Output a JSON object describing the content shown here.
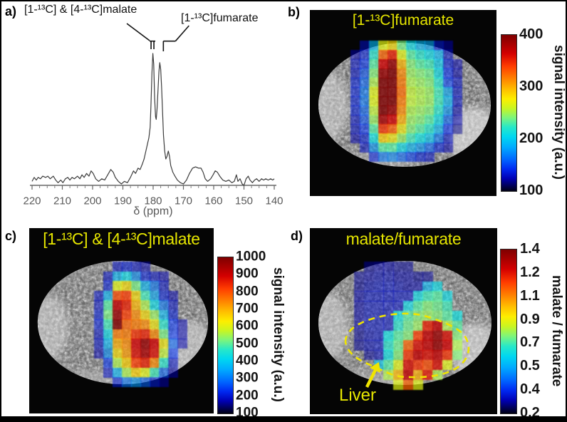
{
  "figure": {
    "background": "#ffffff",
    "border_color": "#000000",
    "accent_yellow": "#e6e600",
    "panels": {
      "a": {
        "label": "a)"
      },
      "b": {
        "label": "b)"
      },
      "c": {
        "label": "c)"
      },
      "d": {
        "label": "d)"
      }
    }
  },
  "chart_data": [
    {
      "id": "a",
      "type": "line",
      "xlabel": "δ (ppm)",
      "x_range": [
        220,
        140
      ],
      "x_ticks": [
        220,
        210,
        200,
        190,
        180,
        170,
        160,
        150,
        140
      ],
      "minor_tick_step": 2.5,
      "line_color": "#3c3c3c",
      "axis_text_color": "#595959",
      "peaks": [
        {
          "label": "[1-¹³C] & [4-¹³C]malate",
          "ppm": 180.1,
          "rel_intensity": 1.0
        },
        {
          "label": "[1-¹³C]fumarate",
          "ppm": 177.8,
          "rel_intensity": 0.93
        }
      ],
      "points": [
        [
          220,
          0.03
        ],
        [
          219.3,
          0.06
        ],
        [
          218.6,
          0.04
        ],
        [
          218,
          0.06
        ],
        [
          217.2,
          0.05
        ],
        [
          216.5,
          0.07
        ],
        [
          215.5,
          0.06
        ],
        [
          214.8,
          0.07
        ],
        [
          214,
          0.05
        ],
        [
          213,
          0.07
        ],
        [
          212.2,
          0.04
        ],
        [
          211.4,
          0.02
        ],
        [
          210.5,
          0.04
        ],
        [
          209.8,
          0.02
        ],
        [
          209,
          0.05
        ],
        [
          208.2,
          0.06
        ],
        [
          207.5,
          0.04
        ],
        [
          206.8,
          0.06
        ],
        [
          206,
          0.05
        ],
        [
          205,
          0.07
        ],
        [
          204.2,
          0.05
        ],
        [
          203.5,
          0.08
        ],
        [
          202.8,
          0.06
        ],
        [
          202,
          0.09
        ],
        [
          201.2,
          0.07
        ],
        [
          200.5,
          0.11
        ],
        [
          199.8,
          0.09
        ],
        [
          199,
          0.05
        ],
        [
          198,
          0.03
        ],
        [
          197,
          0.05
        ],
        [
          196,
          0.04
        ],
        [
          195,
          0.08
        ],
        [
          194,
          0.12
        ],
        [
          193.2,
          0.1
        ],
        [
          192.5,
          0.06
        ],
        [
          191.5,
          0.03
        ],
        [
          190.5,
          0.01
        ],
        [
          189.5,
          0.03
        ],
        [
          188.5,
          0.02
        ],
        [
          187.5,
          0.06
        ],
        [
          186.5,
          0.11
        ],
        [
          185.8,
          0.09
        ],
        [
          185,
          0.13
        ],
        [
          184.3,
          0.12
        ],
        [
          183.6,
          0.16
        ],
        [
          183,
          0.2
        ],
        [
          182.4,
          0.26
        ],
        [
          181.8,
          0.32
        ],
        [
          181.4,
          0.36
        ],
        [
          181,
          0.44
        ],
        [
          180.7,
          0.62
        ],
        [
          180.4,
          0.85
        ],
        [
          180.1,
          1.0
        ],
        [
          179.8,
          0.92
        ],
        [
          179.5,
          0.66
        ],
        [
          179.2,
          0.52
        ],
        [
          179,
          0.5
        ],
        [
          178.7,
          0.58
        ],
        [
          178.4,
          0.72
        ],
        [
          178.1,
          0.86
        ],
        [
          177.8,
          0.93
        ],
        [
          177.5,
          0.88
        ],
        [
          177.2,
          0.74
        ],
        [
          176.9,
          0.56
        ],
        [
          176.6,
          0.38
        ],
        [
          176.2,
          0.26
        ],
        [
          175.8,
          0.2
        ],
        [
          175.4,
          0.22
        ],
        [
          175,
          0.26
        ],
        [
          174.6,
          0.22
        ],
        [
          174.2,
          0.15
        ],
        [
          173.5,
          0.1
        ],
        [
          172.8,
          0.07
        ],
        [
          172,
          0.04
        ],
        [
          171,
          0.02
        ],
        [
          170,
          0.01
        ],
        [
          169,
          0.04
        ],
        [
          168,
          0.09
        ],
        [
          167,
          0.13
        ],
        [
          166,
          0.14
        ],
        [
          165,
          0.13
        ],
        [
          164.2,
          0.13
        ],
        [
          163.5,
          0.1
        ],
        [
          162.8,
          0.05
        ],
        [
          162,
          0.03
        ],
        [
          161,
          0.05
        ],
        [
          160.2,
          0.08
        ],
        [
          159.5,
          0.11
        ],
        [
          158.8,
          0.1
        ],
        [
          158,
          0.07
        ],
        [
          157,
          0.04
        ],
        [
          156,
          0.03
        ],
        [
          155,
          0.04
        ],
        [
          154,
          0.02
        ],
        [
          153.2,
          0.03
        ],
        [
          152.5,
          0.08
        ],
        [
          152,
          0.03
        ],
        [
          151.3,
          0.05
        ],
        [
          150.6,
          0.01
        ],
        [
          150,
          0.0
        ],
        [
          149.3,
          0.05
        ],
        [
          148.6,
          0.07
        ],
        [
          148,
          0.04
        ],
        [
          147.2,
          0.02
        ],
        [
          146.5,
          0.04
        ],
        [
          145.8,
          0.05
        ],
        [
          145,
          0.03
        ],
        [
          144.2,
          0.05
        ],
        [
          143.5,
          0.04
        ],
        [
          142.8,
          0.05
        ],
        [
          142,
          0.04
        ],
        [
          141.2,
          0.05
        ],
        [
          140.5,
          0.04
        ],
        [
          140,
          0.05
        ]
      ]
    },
    {
      "id": "b",
      "type": "heatmap",
      "title": "[1-¹³C]fumarate",
      "colorbar": {
        "min": 100,
        "max": 400,
        "ticks": [
          "400",
          "300",
          "200",
          "100"
        ],
        "label": "signal intensity (a.u.)"
      },
      "matrix": [
        [
          null,
          0.1,
          0.3,
          0.55,
          0.6,
          0.45,
          0.35,
          0.3,
          0.28,
          0.12,
          0.08,
          null
        ],
        [
          0.08,
          0.12,
          0.38,
          0.75,
          0.85,
          0.55,
          0.42,
          0.38,
          0.35,
          0.3,
          0.1,
          null
        ],
        [
          0.1,
          0.15,
          0.42,
          0.9,
          0.97,
          0.65,
          0.46,
          0.42,
          0.4,
          0.33,
          0.12,
          0.08
        ],
        [
          0.1,
          0.18,
          0.46,
          0.97,
          1.0,
          0.7,
          0.48,
          0.46,
          0.44,
          0.35,
          0.14,
          0.08
        ],
        [
          0.12,
          0.2,
          0.5,
          1.0,
          1.0,
          0.72,
          0.5,
          0.48,
          0.46,
          0.38,
          0.16,
          0.1
        ],
        [
          0.12,
          0.22,
          0.55,
          1.0,
          1.0,
          0.74,
          0.52,
          0.5,
          0.48,
          0.4,
          0.28,
          0.1
        ],
        [
          0.12,
          0.22,
          0.55,
          1.0,
          1.0,
          0.72,
          0.52,
          0.5,
          0.48,
          0.4,
          0.3,
          0.1
        ],
        [
          0.12,
          0.2,
          0.52,
          1.0,
          0.97,
          0.7,
          0.5,
          0.48,
          0.46,
          0.38,
          0.26,
          0.08
        ],
        [
          0.1,
          0.18,
          0.48,
          0.95,
          0.9,
          0.66,
          0.48,
          0.46,
          0.42,
          0.35,
          0.2,
          0.08
        ],
        [
          0.1,
          0.15,
          0.42,
          0.82,
          0.76,
          0.58,
          0.46,
          0.42,
          0.38,
          0.3,
          0.14,
          0.06
        ],
        [
          0.08,
          0.12,
          0.36,
          0.62,
          0.58,
          0.48,
          0.4,
          0.36,
          0.32,
          0.22,
          0.1,
          null
        ],
        [
          null,
          0.1,
          0.26,
          0.42,
          0.42,
          0.35,
          0.3,
          0.26,
          0.2,
          0.12,
          0.08,
          null
        ],
        [
          null,
          null,
          0.12,
          0.22,
          0.24,
          0.2,
          0.16,
          0.12,
          0.1,
          null,
          null,
          null
        ]
      ]
    },
    {
      "id": "c",
      "type": "heatmap",
      "title": "[1-¹³C] & [4-¹³C]malate",
      "colorbar": {
        "min": 100,
        "max": 1000,
        "ticks": [
          "1000",
          "900",
          "800",
          "700",
          "600",
          "500",
          "400",
          "300",
          "200",
          "100"
        ],
        "label": "signal intensity (a.u.)"
      },
      "matrix": [
        [
          null,
          null,
          0.1,
          0.12,
          0.1,
          0.08,
          null,
          null,
          null,
          null
        ],
        [
          null,
          0.1,
          0.3,
          0.35,
          0.25,
          0.12,
          0.1,
          0.08,
          null,
          null
        ],
        [
          null,
          0.12,
          0.55,
          0.6,
          0.45,
          0.3,
          0.22,
          0.1,
          null,
          null
        ],
        [
          0.1,
          0.3,
          0.78,
          0.8,
          0.6,
          0.4,
          0.28,
          0.12,
          0.08,
          null
        ],
        [
          0.1,
          0.42,
          0.92,
          0.85,
          0.65,
          0.5,
          0.35,
          0.22,
          0.1,
          null
        ],
        [
          0.12,
          0.45,
          0.97,
          0.8,
          0.7,
          0.6,
          0.48,
          0.3,
          0.12,
          null
        ],
        [
          0.12,
          0.4,
          1.0,
          0.75,
          0.72,
          0.7,
          0.58,
          0.38,
          0.15,
          0.08
        ],
        [
          0.1,
          0.35,
          0.72,
          0.72,
          0.82,
          0.85,
          0.7,
          0.45,
          0.15,
          0.08
        ],
        [
          0.1,
          0.3,
          0.66,
          0.7,
          0.9,
          0.97,
          0.9,
          0.58,
          0.2,
          0.08
        ],
        [
          0.08,
          0.25,
          0.6,
          0.68,
          0.88,
          0.95,
          0.88,
          0.52,
          0.15,
          null
        ],
        [
          null,
          0.15,
          0.5,
          0.62,
          0.8,
          0.85,
          0.7,
          0.38,
          0.1,
          null
        ],
        [
          null,
          0.1,
          0.3,
          0.5,
          0.62,
          0.55,
          0.4,
          0.2,
          0.08,
          null
        ],
        [
          null,
          null,
          0.12,
          0.22,
          0.26,
          0.2,
          0.12,
          0.08,
          null,
          null
        ]
      ]
    },
    {
      "id": "d",
      "type": "heatmap",
      "title": "malate/fumarate",
      "colorbar": {
        "min": 0.2,
        "max": 1.4,
        "ticks": [
          "1.4",
          "1.2",
          "1.1",
          "0.9",
          "0.7",
          "0.5",
          "0.4",
          "0.2"
        ],
        "label": "malate / fumarate"
      },
      "annotation": "Liver",
      "matrix": [
        [
          null,
          0.07,
          0.08,
          0.08,
          0.07,
          0.07,
          null,
          null,
          null,
          null,
          null,
          null
        ],
        [
          0.07,
          0.08,
          0.09,
          0.09,
          0.08,
          0.08,
          0.07,
          0.07,
          null,
          null,
          null,
          null
        ],
        [
          0.07,
          0.09,
          0.1,
          0.1,
          0.09,
          0.08,
          0.08,
          0.3,
          0.35,
          null,
          null,
          null
        ],
        [
          0.08,
          0.1,
          0.1,
          0.1,
          0.1,
          0.1,
          0.35,
          0.4,
          0.42,
          0.35,
          null,
          null
        ],
        [
          0.08,
          0.1,
          0.1,
          0.1,
          0.1,
          0.35,
          0.42,
          0.46,
          0.44,
          0.4,
          null,
          null
        ],
        [
          0.08,
          0.1,
          0.1,
          0.1,
          0.36,
          0.42,
          0.46,
          0.48,
          0.46,
          0.42,
          0.36,
          null
        ],
        [
          0.08,
          0.1,
          0.1,
          0.1,
          0.38,
          0.44,
          0.48,
          0.85,
          0.92,
          0.5,
          0.42,
          null
        ],
        [
          0.07,
          0.09,
          0.1,
          0.36,
          0.42,
          0.46,
          0.8,
          0.92,
          0.97,
          0.88,
          0.46,
          null
        ],
        [
          0.07,
          0.09,
          0.1,
          0.38,
          0.44,
          0.75,
          0.88,
          0.92,
          0.97,
          0.9,
          0.5,
          null
        ],
        [
          null,
          0.07,
          0.09,
          0.36,
          0.46,
          0.82,
          0.92,
          0.88,
          0.92,
          0.82,
          0.46,
          null
        ],
        [
          null,
          null,
          0.32,
          0.42,
          0.55,
          0.88,
          0.82,
          0.78,
          0.88,
          0.55,
          null,
          null
        ],
        [
          null,
          null,
          null,
          0.5,
          0.65,
          0.92,
          0.66,
          0.86,
          0.5,
          null,
          null,
          null
        ],
        [
          null,
          null,
          null,
          null,
          0.55,
          0.75,
          0.55,
          null,
          null,
          null,
          null,
          null
        ]
      ]
    }
  ]
}
